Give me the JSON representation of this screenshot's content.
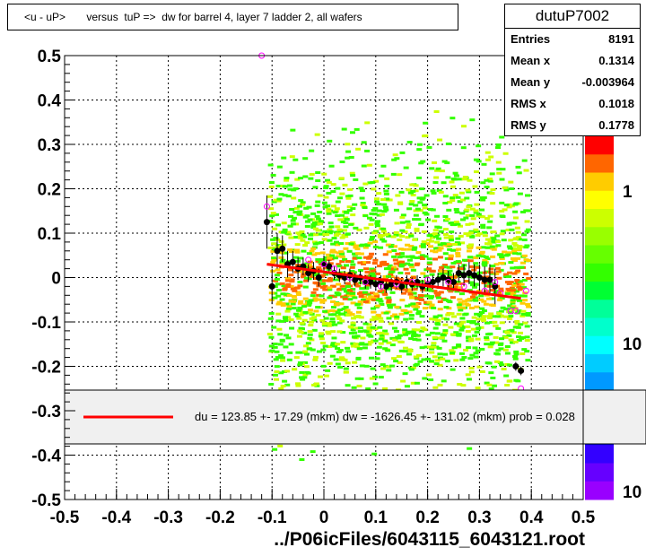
{
  "title": "<u - uP>       versus  tuP =>  dw for barrel 4, layer 7 ladder 2, all wafers",
  "stats": {
    "name": "dutuP7002",
    "rows": [
      {
        "key": "Entries",
        "value": "8191"
      },
      {
        "key": "Mean x",
        "value": "0.1314"
      },
      {
        "key": "Mean y",
        "value": "-0.003964"
      },
      {
        "key": "RMS x",
        "value": "0.1018"
      },
      {
        "key": "RMS y",
        "value": "0.1778"
      }
    ]
  },
  "fit_legend": "du =  123.85 +- 17.29 (mkm) dw = -1626.45 +- 131.02 (mkm) prob = 0.028",
  "footer": "../P06icFiles/6043115_6043121.root",
  "palette_labels": [
    "1",
    "10",
    "10"
  ],
  "colors": {
    "fit_line": "#ff0000",
    "profile_points": "#000000",
    "open_markers": "#ff00ff",
    "scatter_low": "#33ff00",
    "scatter_mid": "#ccff00",
    "scatter_high": "#ffcc00",
    "scatter_peak": "#ff6600"
  },
  "chart_data": {
    "type": "scatter",
    "xlim": [
      -0.5,
      0.5
    ],
    "ylim": [
      -0.5,
      0.5
    ],
    "x_ticks": [
      "-0.5",
      "-0.4",
      "-0.3",
      "-0.2",
      "-0.1",
      "0",
      "0.1",
      "0.2",
      "0.3",
      "0.4",
      "0.5"
    ],
    "y_ticks": [
      "0.5",
      "0.4",
      "0.3",
      "0.2",
      "0.1",
      "0",
      "-0.1",
      "-0.2",
      "-0.3",
      "-0.4",
      "-0.5"
    ],
    "grid": true,
    "fit_line": {
      "x": [
        -0.11,
        0.38
      ],
      "y": [
        0.03,
        -0.047
      ]
    },
    "profile_points": {
      "x": [
        -0.11,
        -0.1,
        -0.09,
        -0.08,
        -0.07,
        -0.06,
        -0.05,
        -0.04,
        -0.03,
        -0.02,
        -0.01,
        0.0,
        0.01,
        0.02,
        0.03,
        0.04,
        0.05,
        0.06,
        0.07,
        0.08,
        0.09,
        0.1,
        0.11,
        0.12,
        0.13,
        0.14,
        0.15,
        0.16,
        0.17,
        0.18,
        0.19,
        0.2,
        0.21,
        0.22,
        0.23,
        0.24,
        0.25,
        0.26,
        0.27,
        0.28,
        0.29,
        0.3,
        0.31,
        0.32,
        0.33,
        0.37,
        0.38
      ],
      "y": [
        0.125,
        -0.02,
        0.06,
        0.065,
        0.03,
        0.035,
        0.02,
        0.025,
        0.01,
        0.015,
        0.0,
        0.03,
        0.025,
        0.01,
        0.005,
        0.0,
        0.005,
        -0.005,
        0.0,
        -0.01,
        -0.01,
        -0.015,
        -0.01,
        -0.02,
        -0.015,
        -0.01,
        -0.02,
        -0.01,
        -0.015,
        -0.01,
        -0.02,
        -0.015,
        -0.01,
        -0.005,
        0.0,
        -0.005,
        -0.01,
        0.01,
        0.005,
        0.01,
        0.005,
        0.0,
        -0.005,
        -0.005,
        -0.02,
        -0.2,
        -0.21
      ],
      "err": [
        0.06,
        0.04,
        0.04,
        0.03,
        0.03,
        0.025,
        0.025,
        0.02,
        0.02,
        0.02,
        0.02,
        0.02,
        0.015,
        0.015,
        0.015,
        0.015,
        0.015,
        0.015,
        0.015,
        0.015,
        0.015,
        0.015,
        0.015,
        0.015,
        0.015,
        0.015,
        0.015,
        0.015,
        0.015,
        0.015,
        0.015,
        0.015,
        0.015,
        0.015,
        0.02,
        0.02,
        0.02,
        0.02,
        0.025,
        0.025,
        0.025,
        0.03,
        0.03,
        0.035,
        0.04,
        0.01,
        0.01
      ]
    },
    "open_markers": {
      "x": [
        -0.12,
        -0.11,
        -0.03,
        0.0,
        0.02,
        0.05,
        0.08,
        0.11,
        0.14,
        0.17,
        0.2,
        0.24,
        0.27,
        0.31,
        0.33,
        0.34,
        0.36,
        0.37,
        0.38,
        0.39
      ],
      "y": [
        0.5,
        0.16,
        0.04,
        0.03,
        0.02,
        0.0,
        -0.01,
        -0.02,
        -0.015,
        -0.01,
        -0.005,
        -0.01,
        -0.02,
        -0.03,
        -0.01,
        -0.035,
        -0.075,
        -0.075,
        -0.25,
        -0.03
      ]
    }
  }
}
